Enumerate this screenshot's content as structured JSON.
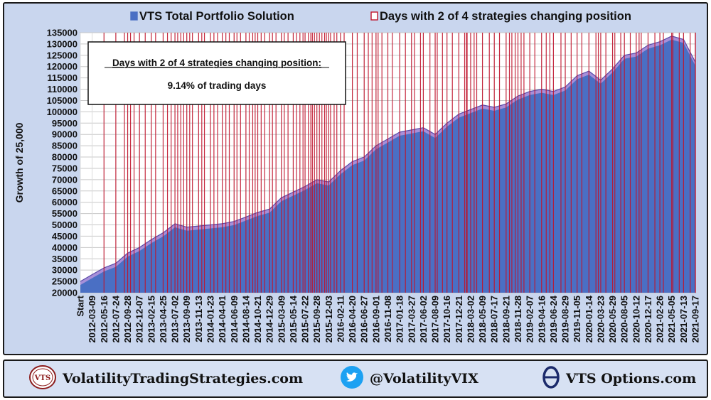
{
  "chart_data": {
    "type": "area",
    "series": [
      {
        "name": "VTS Total Portfolio Solution",
        "color": "#4a6fc4",
        "x": [
          "Start",
          "2012-03-09",
          "2012-05-16",
          "2012-07-24",
          "2012-09-28",
          "2012-12-07",
          "2013-02-15",
          "2013-04-25",
          "2013-07-02",
          "2013-09-09",
          "2013-11-13",
          "2014-01-23",
          "2014-04-01",
          "2014-06-09",
          "2014-08-14",
          "2014-10-21",
          "2014-12-29",
          "2015-03-09",
          "2015-05-14",
          "2015-07-22",
          "2015-09-28",
          "2015-12-03",
          "2016-02-11",
          "2016-04-20",
          "2016-06-27",
          "2016-09-01",
          "2016-11-08",
          "2017-01-18",
          "2017-03-27",
          "2017-06-02",
          "2017-08-09",
          "2017-10-16",
          "2017-12-21",
          "2018-03-02",
          "2018-05-09",
          "2018-07-17",
          "2018-09-21",
          "2018-11-28",
          "2019-02-07",
          "2019-04-16",
          "2019-06-24",
          "2019-08-29",
          "2019-11-05",
          "2020-01-14",
          "2020-03-23",
          "2020-05-29",
          "2020-08-05",
          "2020-10-12",
          "2020-12-17",
          "2021-02-26",
          "2021-05-05",
          "2021-07-13",
          "2021-09-17"
        ],
        "values": [
          25000,
          28000,
          31000,
          33000,
          37500,
          40000,
          43500,
          46500,
          50500,
          49000,
          49500,
          50000,
          50500,
          51500,
          53500,
          55500,
          57000,
          62000,
          64500,
          67000,
          70000,
          69000,
          74000,
          78000,
          80000,
          85000,
          88000,
          91000,
          92000,
          93000,
          90000,
          95000,
          99000,
          101000,
          103000,
          102000,
          103500,
          107000,
          109000,
          110000,
          109000,
          111000,
          116000,
          118000,
          114000,
          119000,
          125000,
          126000,
          129500,
          131000,
          133500,
          132000,
          122000
        ]
      }
    ],
    "legend": [
      {
        "label": "VTS Total Portfolio Solution",
        "color": "#4a6fc4"
      },
      {
        "label": "Days with 2 of 4 strategies changing position",
        "color": "#c0142c"
      }
    ],
    "legend_placement": "top",
    "event_lines": {
      "name": "Days with 2 of 4 strategies changing position",
      "color": "#c0142c",
      "x": [
        "2012-05-16",
        "2012-07-24",
        "2012-09-10",
        "2012-09-28",
        "2012-10-15",
        "2012-11-05",
        "2012-12-07",
        "2013-01-10",
        "2013-02-15",
        "2013-03-12",
        "2013-04-25",
        "2013-05-20",
        "2013-06-10",
        "2013-07-02",
        "2013-07-18",
        "2013-08-05",
        "2013-08-22",
        "2013-09-09",
        "2013-09-25",
        "2013-10-10",
        "2013-11-13",
        "2013-12-02",
        "2013-12-18",
        "2014-01-23",
        "2014-02-12",
        "2014-03-05",
        "2014-04-01",
        "2014-04-22",
        "2014-05-12",
        "2014-06-09",
        "2014-06-25",
        "2014-07-15",
        "2014-08-14",
        "2014-09-02",
        "2014-09-22",
        "2014-10-06",
        "2014-10-21",
        "2014-11-10",
        "2014-12-01",
        "2014-12-29",
        "2015-01-15",
        "2015-02-05",
        "2015-03-09",
        "2015-03-25",
        "2015-04-15",
        "2015-05-14",
        "2015-06-02",
        "2015-06-22",
        "2015-07-10",
        "2015-07-22",
        "2015-08-10",
        "2015-08-24",
        "2015-09-02",
        "2015-09-14",
        "2015-09-28",
        "2015-10-12",
        "2015-10-26",
        "2015-11-10",
        "2015-11-20",
        "2015-12-03",
        "2015-12-14",
        "2016-01-04",
        "2016-01-20",
        "2016-02-11",
        "2016-03-03",
        "2016-04-20",
        "2016-05-18",
        "2016-06-27",
        "2016-07-20",
        "2016-08-10",
        "2016-09-01",
        "2016-09-13",
        "2016-10-05",
        "2016-11-08",
        "2016-12-05",
        "2017-01-18",
        "2017-02-20",
        "2017-03-27",
        "2017-04-13",
        "2017-05-17",
        "2017-06-02",
        "2017-07-10",
        "2017-08-09",
        "2017-08-21",
        "2017-09-20",
        "2017-10-16",
        "2017-11-15",
        "2017-12-21",
        "2018-01-25",
        "2018-02-05",
        "2018-02-09",
        "2018-03-02",
        "2018-03-22",
        "2018-04-06",
        "2018-05-09",
        "2018-06-18",
        "2018-07-17",
        "2018-08-15",
        "2018-09-21",
        "2018-10-10",
        "2018-10-24",
        "2018-11-12",
        "2018-11-28",
        "2018-12-17",
        "2019-01-03",
        "2019-02-07",
        "2019-03-08",
        "2019-04-16",
        "2019-05-13",
        "2019-06-03",
        "2019-06-24",
        "2019-08-05",
        "2019-08-29",
        "2019-10-02",
        "2019-11-05",
        "2019-12-03",
        "2020-01-14",
        "2020-02-24",
        "2020-03-09",
        "2020-03-23",
        "2020-04-21",
        "2020-05-29",
        "2020-06-11",
        "2020-07-15",
        "2020-08-05",
        "2020-09-08",
        "2020-10-12",
        "2020-10-28",
        "2020-11-09",
        "2020-12-17",
        "2021-01-27",
        "2021-02-26",
        "2021-03-18",
        "2021-05-05",
        "2021-05-12",
        "2021-06-18",
        "2021-07-13",
        "2021-08-19",
        "2021-09-17",
        "2021-09-28"
      ]
    },
    "xlabel": "",
    "ylabel": "Growth of 25,000",
    "ylim": [
      20000,
      135000
    ],
    "yticks": [
      "20000",
      "25000",
      "30000",
      "35000",
      "40000",
      "45000",
      "50000",
      "55000",
      "60000",
      "65000",
      "70000",
      "75000",
      "80000",
      "85000",
      "90000",
      "95000",
      "100000",
      "105000",
      "110000",
      "115000",
      "120000",
      "125000",
      "130000",
      "135000"
    ],
    "grid": true,
    "annotation": {
      "title": "Days with 2 of 4 strategies changing position:",
      "value": "9.14% of trading days"
    }
  },
  "footer": {
    "site": "VolatilityTradingStrategies.com",
    "logo_text": "VTS",
    "twitter": "@VolatilityVIX",
    "options": "VTS Options.com",
    "options_icon_text": "Θ"
  },
  "colors": {
    "panel_bg": "#c9d6ee",
    "plot_bg": "#ffffff",
    "area_fill": "#4a6fc4",
    "area_highlight": "#a78fd9",
    "event_line": "#c0142c",
    "twitter_blue": "#1da1f2",
    "options_navy": "#1b2a6b"
  }
}
